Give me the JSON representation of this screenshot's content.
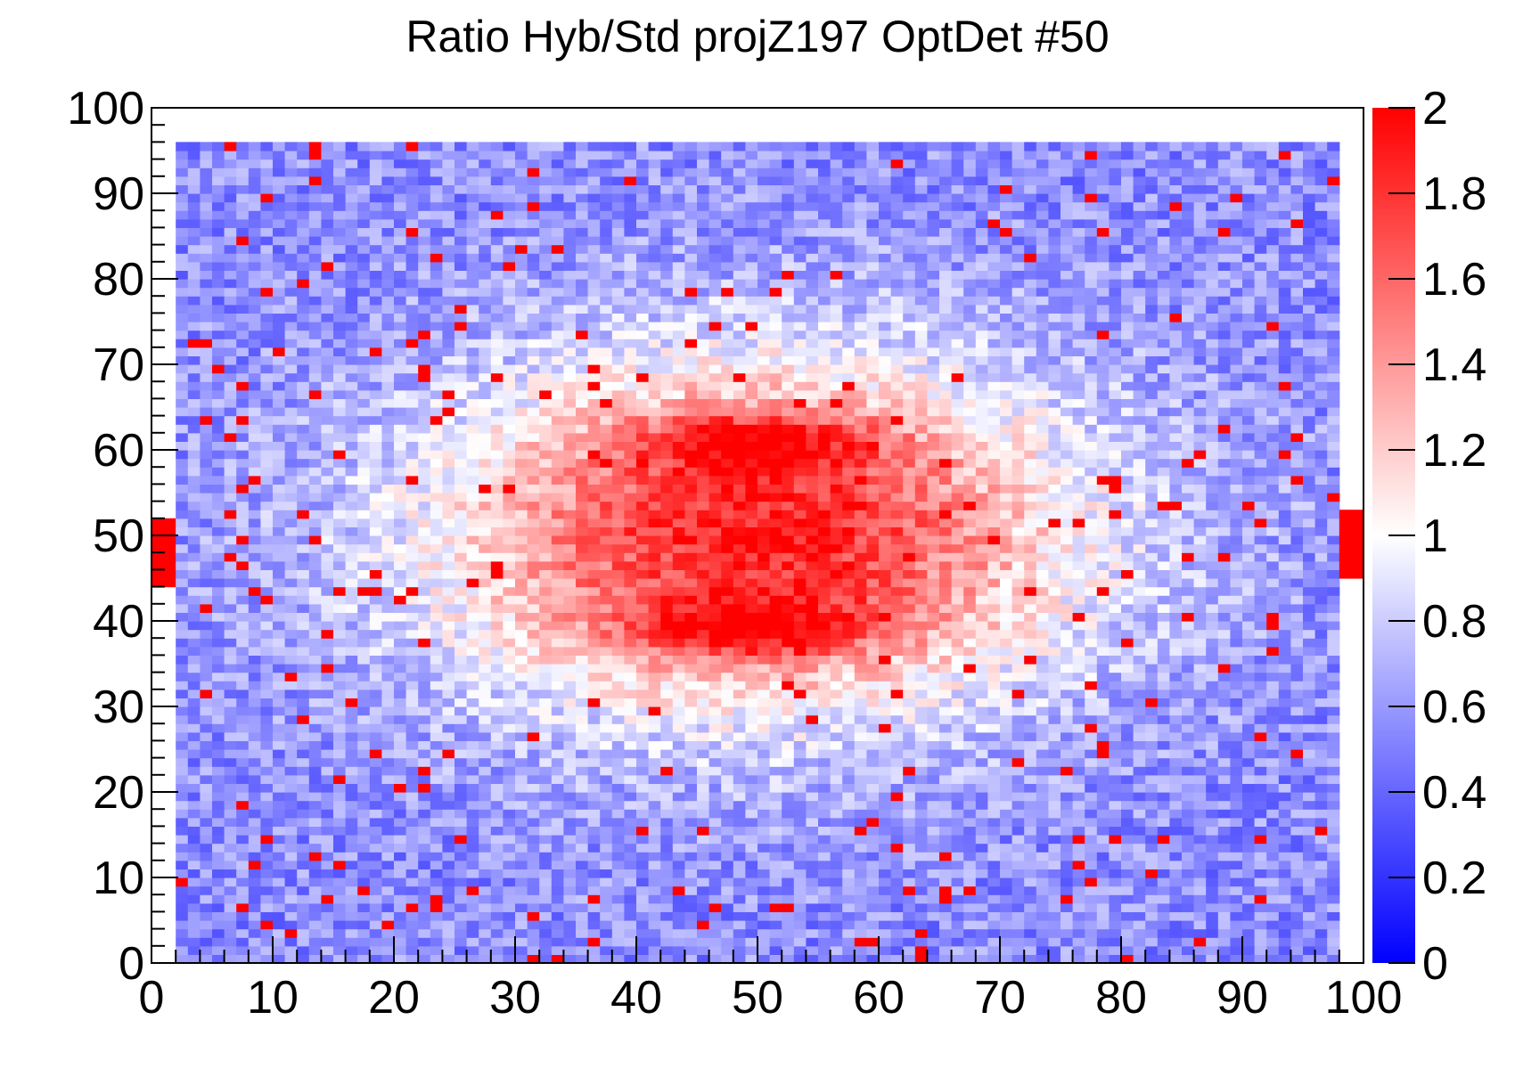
{
  "chart_data": {
    "type": "heatmap",
    "title": "Ratio Hyb/Std projZ197 OptDet #50",
    "xlabel": "",
    "ylabel": "",
    "xlim": [
      0,
      100
    ],
    "ylim": [
      0,
      100
    ],
    "zlim": [
      0,
      2
    ],
    "bins": [
      100,
      100
    ],
    "x_ticks": [
      "0",
      "10",
      "20",
      "30",
      "40",
      "50",
      "60",
      "70",
      "80",
      "90",
      "100"
    ],
    "y_ticks": [
      "0",
      "10",
      "20",
      "30",
      "40",
      "50",
      "60",
      "70",
      "80",
      "90",
      "100"
    ],
    "z_ticks": [
      "0",
      "0.2",
      "0.4",
      "0.6",
      "0.8",
      "1",
      "1.2",
      "1.4",
      "1.6",
      "1.8",
      "2"
    ],
    "colormap": {
      "low": "#0000ff",
      "mid": "#ffffff",
      "high": "#ff0000"
    },
    "features": {
      "background_ratio": 0.55,
      "central_lobe_center": [
        50,
        50
      ],
      "upper_lobe_peak": {
        "x": 50,
        "y": 61,
        "value": 2.0
      },
      "lower_lobe_peak": {
        "x": 49,
        "y": 39,
        "value": 2.0
      },
      "side_hotspots": [
        {
          "x": 1,
          "y": 48,
          "value": 2.0
        },
        {
          "x": 99,
          "y": 49,
          "value": 2.0
        }
      ]
    },
    "grid": false
  }
}
